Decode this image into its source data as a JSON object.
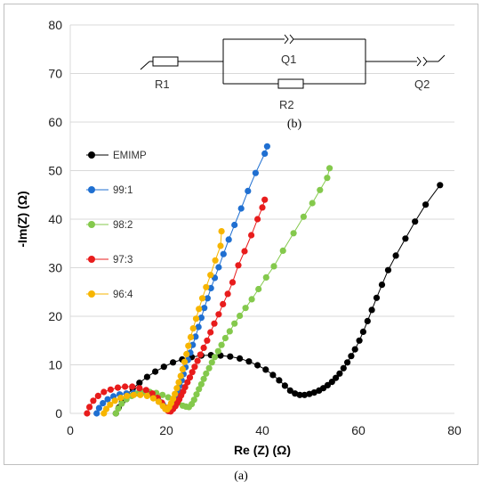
{
  "caption": "(a)",
  "chart_data": {
    "type": "scatter",
    "xlabel": "Re (Z) (Ω)",
    "ylabel": "-Im(Z) (Ω)",
    "xlim": [
      0,
      80
    ],
    "ylim": [
      0,
      80
    ],
    "xticks": [
      0,
      20,
      40,
      60,
      80
    ],
    "yticks": [
      0,
      10,
      20,
      30,
      40,
      50,
      60,
      70,
      80
    ],
    "grid": "horizontal",
    "legend_placement": "left",
    "series": [
      {
        "name": "EMIMP",
        "color": "#000000",
        "points": [
          [
            9.5,
            0
          ],
          [
            10.1,
            1.2
          ],
          [
            10.8,
            2.4
          ],
          [
            11.8,
            3.8
          ],
          [
            13.0,
            5.1
          ],
          [
            14.4,
            6.3
          ],
          [
            16.0,
            7.5
          ],
          [
            17.7,
            8.6
          ],
          [
            19.5,
            9.6
          ],
          [
            21.4,
            10.5
          ],
          [
            23.3,
            11.1
          ],
          [
            25.3,
            11.6
          ],
          [
            27.3,
            11.9
          ],
          [
            29.3,
            12.0
          ],
          [
            31.3,
            11.9
          ],
          [
            33.3,
            11.7
          ],
          [
            35.3,
            11.3
          ],
          [
            37.2,
            10.7
          ],
          [
            39.0,
            9.9
          ],
          [
            40.7,
            9.0
          ],
          [
            42.2,
            7.9
          ],
          [
            43.5,
            6.8
          ],
          [
            44.7,
            5.7
          ],
          [
            45.8,
            4.7
          ],
          [
            46.8,
            4.1
          ],
          [
            47.8,
            3.8
          ],
          [
            48.8,
            3.8
          ],
          [
            49.8,
            4.0
          ],
          [
            50.8,
            4.3
          ],
          [
            51.8,
            4.7
          ],
          [
            52.7,
            5.2
          ],
          [
            53.6,
            5.8
          ],
          [
            54.5,
            6.5
          ],
          [
            55.3,
            7.3
          ],
          [
            56.1,
            8.2
          ],
          [
            56.9,
            9.3
          ],
          [
            57.7,
            10.5
          ],
          [
            58.5,
            11.8
          ],
          [
            59.3,
            13.2
          ],
          [
            60.2,
            15.0
          ],
          [
            61.0,
            16.8
          ],
          [
            61.9,
            19.0
          ],
          [
            62.8,
            21.3
          ],
          [
            63.8,
            23.8
          ],
          [
            64.9,
            26.5
          ],
          [
            66.2,
            29.5
          ],
          [
            67.8,
            32.5
          ],
          [
            69.8,
            36.0
          ],
          [
            71.8,
            39.5
          ],
          [
            74.0,
            43.0
          ],
          [
            77.0,
            47.0
          ]
        ]
      },
      {
        "name": "99:1",
        "color": "#1f6fd1",
        "points": [
          [
            5.5,
            0
          ],
          [
            6.0,
            1.1
          ],
          [
            6.8,
            2.1
          ],
          [
            7.8,
            2.9
          ],
          [
            9.0,
            3.5
          ],
          [
            10.3,
            3.9
          ],
          [
            11.7,
            4.1
          ],
          [
            13.2,
            4.2
          ],
          [
            14.6,
            4.1
          ],
          [
            16.0,
            3.8
          ],
          [
            17.3,
            3.3
          ],
          [
            18.4,
            2.6
          ],
          [
            19.3,
            1.8
          ],
          [
            20.0,
            0.9
          ],
          [
            20.5,
            0.5
          ],
          [
            20.9,
            0.6
          ],
          [
            21.3,
            1.2
          ],
          [
            21.6,
            1.9
          ],
          [
            21.9,
            2.7
          ],
          [
            22.2,
            3.6
          ],
          [
            22.5,
            4.6
          ],
          [
            22.8,
            5.7
          ],
          [
            23.2,
            6.8
          ],
          [
            23.6,
            8.1
          ],
          [
            24.0,
            9.5
          ],
          [
            24.5,
            11.0
          ],
          [
            25.0,
            12.5
          ],
          [
            25.5,
            14.1
          ],
          [
            26.1,
            15.8
          ],
          [
            26.7,
            17.8
          ],
          [
            27.3,
            19.7
          ],
          [
            27.9,
            21.7
          ],
          [
            28.6,
            23.7
          ],
          [
            29.3,
            25.8
          ],
          [
            30.1,
            27.9
          ],
          [
            30.9,
            30.1
          ],
          [
            31.9,
            32.8
          ],
          [
            33.0,
            35.8
          ],
          [
            34.2,
            38.8
          ],
          [
            35.6,
            42.2
          ],
          [
            37.0,
            45.8
          ],
          [
            38.6,
            49.5
          ],
          [
            40.5,
            53.5
          ],
          [
            41.0,
            55.0
          ]
        ]
      },
      {
        "name": "98:2",
        "color": "#84c94c",
        "points": [
          [
            9.5,
            0
          ],
          [
            10.0,
            1.0
          ],
          [
            10.7,
            2.0
          ],
          [
            11.7,
            2.9
          ],
          [
            12.8,
            3.6
          ],
          [
            14.0,
            4.1
          ],
          [
            15.3,
            4.4
          ],
          [
            16.6,
            4.4
          ],
          [
            17.9,
            4.2
          ],
          [
            19.2,
            3.8
          ],
          [
            20.4,
            3.3
          ],
          [
            21.5,
            2.8
          ],
          [
            22.5,
            2.2
          ],
          [
            23.4,
            1.6
          ],
          [
            24.1,
            1.4
          ],
          [
            24.7,
            1.3
          ],
          [
            25.3,
            1.9
          ],
          [
            25.8,
            2.8
          ],
          [
            26.3,
            3.9
          ],
          [
            26.8,
            5.0
          ],
          [
            27.3,
            6.0
          ],
          [
            27.8,
            7.1
          ],
          [
            28.3,
            8.2
          ],
          [
            28.9,
            9.3
          ],
          [
            29.5,
            10.5
          ],
          [
            30.1,
            11.6
          ],
          [
            30.8,
            12.8
          ],
          [
            31.5,
            14.1
          ],
          [
            32.3,
            15.5
          ],
          [
            33.2,
            16.9
          ],
          [
            34.2,
            18.5
          ],
          [
            35.3,
            20.1
          ],
          [
            36.5,
            21.7
          ],
          [
            37.8,
            23.5
          ],
          [
            39.2,
            25.6
          ],
          [
            40.8,
            28.0
          ],
          [
            42.4,
            30.3
          ],
          [
            44.3,
            33.5
          ],
          [
            46.5,
            37.1
          ],
          [
            48.6,
            40.5
          ],
          [
            50.4,
            43.3
          ],
          [
            52.0,
            46.0
          ],
          [
            53.5,
            48.5
          ],
          [
            54.0,
            50.5
          ]
        ]
      },
      {
        "name": "97:3",
        "color": "#e81c1c",
        "points": [
          [
            3.5,
            0
          ],
          [
            4.0,
            1.3
          ],
          [
            4.8,
            2.6
          ],
          [
            5.8,
            3.6
          ],
          [
            7.0,
            4.4
          ],
          [
            8.4,
            4.9
          ],
          [
            9.9,
            5.3
          ],
          [
            11.4,
            5.5
          ],
          [
            12.9,
            5.5
          ],
          [
            14.4,
            5.2
          ],
          [
            15.8,
            4.8
          ],
          [
            17.1,
            4.1
          ],
          [
            18.2,
            3.2
          ],
          [
            19.1,
            2.2
          ],
          [
            19.8,
            1.2
          ],
          [
            20.4,
            0.5
          ],
          [
            20.9,
            0.4
          ],
          [
            21.4,
            0.9
          ],
          [
            21.9,
            1.5
          ],
          [
            22.3,
            2.2
          ],
          [
            22.7,
            2.9
          ],
          [
            23.1,
            3.7
          ],
          [
            23.5,
            4.5
          ],
          [
            23.9,
            5.4
          ],
          [
            24.4,
            6.4
          ],
          [
            24.9,
            7.4
          ],
          [
            25.4,
            8.5
          ],
          [
            25.9,
            9.6
          ],
          [
            26.5,
            10.8
          ],
          [
            27.1,
            12.1
          ],
          [
            27.8,
            13.5
          ],
          [
            28.5,
            15.0
          ],
          [
            29.2,
            16.7
          ],
          [
            30.0,
            18.5
          ],
          [
            30.9,
            20.4
          ],
          [
            31.8,
            22.5
          ],
          [
            32.8,
            24.6
          ],
          [
            33.8,
            27.0
          ],
          [
            35.0,
            30.5
          ],
          [
            36.3,
            33.4
          ],
          [
            37.7,
            36.7
          ],
          [
            39.0,
            40.0
          ],
          [
            40.0,
            42.4
          ],
          [
            40.5,
            44.0
          ]
        ]
      },
      {
        "name": "96:4",
        "color": "#f7b500",
        "points": [
          [
            7.0,
            0
          ],
          [
            7.5,
            0.9
          ],
          [
            8.3,
            1.8
          ],
          [
            9.3,
            2.6
          ],
          [
            10.5,
            3.2
          ],
          [
            11.8,
            3.6
          ],
          [
            13.2,
            3.8
          ],
          [
            14.6,
            3.8
          ],
          [
            16.0,
            3.6
          ],
          [
            17.3,
            3.1
          ],
          [
            18.4,
            2.4
          ],
          [
            19.3,
            1.5
          ],
          [
            19.8,
            0.9
          ],
          [
            20.2,
            0.8
          ],
          [
            20.6,
            1.3
          ],
          [
            21.0,
            2.1
          ],
          [
            21.4,
            3.0
          ],
          [
            21.8,
            4.0
          ],
          [
            22.2,
            5.2
          ],
          [
            22.6,
            6.4
          ],
          [
            23.0,
            7.7
          ],
          [
            23.4,
            9.1
          ],
          [
            23.8,
            10.6
          ],
          [
            24.2,
            12.2
          ],
          [
            24.6,
            13.9
          ],
          [
            25.1,
            15.7
          ],
          [
            25.6,
            17.5
          ],
          [
            26.2,
            19.5
          ],
          [
            26.8,
            21.5
          ],
          [
            27.5,
            23.7
          ],
          [
            28.3,
            26.0
          ],
          [
            29.2,
            28.5
          ],
          [
            30.2,
            31.5
          ],
          [
            31.3,
            34.5
          ],
          [
            31.5,
            37.5
          ]
        ]
      }
    ],
    "inset": {
      "panel_label": "(b)",
      "labels": [
        "R1",
        "Q1",
        "R2",
        "Q2"
      ]
    }
  }
}
